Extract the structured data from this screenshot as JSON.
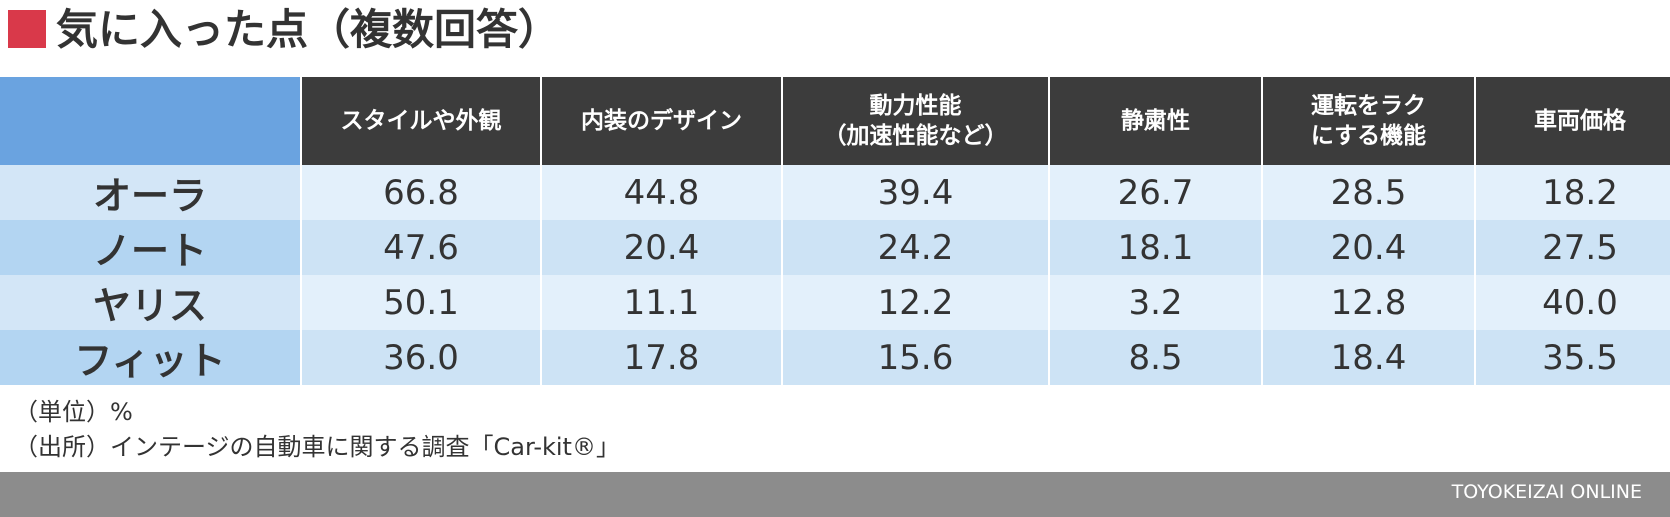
{
  "header": {
    "title": "気に入った点（複数回答）"
  },
  "table": {
    "columns": [
      "スタイルや外観",
      "内装のデザイン",
      "動力性能\n（加速性能など）",
      "静粛性",
      "運転をラク\nにする機能",
      "車両価格"
    ],
    "rows": [
      {
        "label": "オーラ",
        "values": [
          "66.8",
          "44.8",
          "39.4",
          "26.7",
          "28.5",
          "18.2"
        ]
      },
      {
        "label": "ノート",
        "values": [
          "47.6",
          "20.4",
          "24.2",
          "18.1",
          "20.4",
          "27.5"
        ]
      },
      {
        "label": "ヤリス",
        "values": [
          "50.1",
          "11.1",
          "12.2",
          "3.2",
          "12.8",
          "40.0"
        ]
      },
      {
        "label": "フィット",
        "values": [
          "36.0",
          "17.8",
          "15.6",
          "8.5",
          "18.4",
          "35.5"
        ]
      }
    ]
  },
  "notes": [
    "（単位）%",
    "（出所）インテージの自動車に関する調査「Car-kit®」"
  ],
  "footer": {
    "brand": "TOYOKEIZAI ONLINE"
  }
}
